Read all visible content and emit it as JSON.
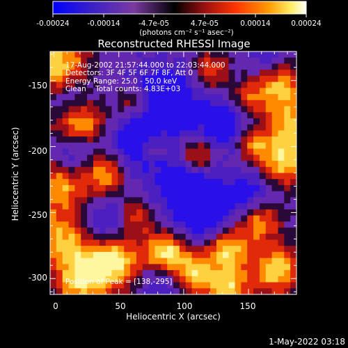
{
  "colorbar": {
    "ticks": [
      "-0.00024",
      "-0.00014",
      "-4.7e-05",
      "4.7e-05",
      "0.00014",
      "0.00024"
    ],
    "units_label": "(photons cm⁻² s⁻¹ asec⁻²)",
    "range": [
      -0.00024,
      0.00024
    ],
    "colors": [
      "#0000ff",
      "#4b1fb5",
      "#7a3aa0",
      "#000000",
      "#9a1010",
      "#ff3300",
      "#ff9900",
      "#ffee66",
      "#ffffff"
    ]
  },
  "plot": {
    "title": "Reconstructed RHESSI Image",
    "xlabel": "Heliocentric X (arcsec)",
    "ylabel": "Heliocentric Y (arcsec)",
    "xticks": [
      "0",
      "50",
      "100",
      "150"
    ],
    "yticks": [
      "-150",
      "-200",
      "-250",
      "-300"
    ],
    "xlim": [
      -3,
      187
    ],
    "ylim": [
      -312,
      -128
    ],
    "info": [
      "17-Aug-2002 21:57:44.000 to 22:03:44.000",
      "Detectors: 3F 4F 5F 6F 7F 8F, Att 0",
      "Energy Range: 25.0 - 50.0 keV",
      "Clean    Total counts: 4.83E+03"
    ],
    "peak_label": "Position of Peak = [138,-295]"
  },
  "footer": {
    "timestamp": "1-May-2022 03:18"
  }
}
